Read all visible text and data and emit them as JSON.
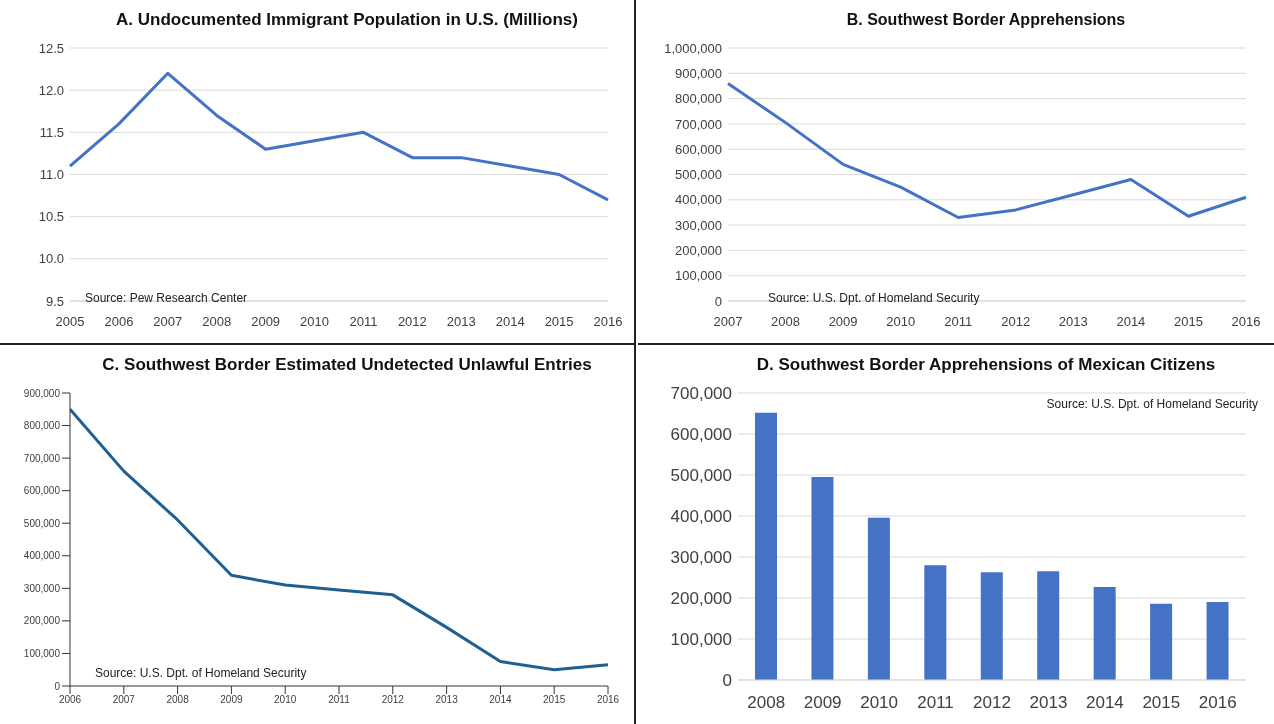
{
  "chart_data": [
    {
      "type": "line",
      "title": "A. Undocumented Immigrant Population in U.S. (Millions)",
      "categories": [
        "2005",
        "2006",
        "2007",
        "2008",
        "2009",
        "2010",
        "2011",
        "2012",
        "2013",
        "2014",
        "2015",
        "2016"
      ],
      "series": [
        {
          "color": "#4472c4",
          "values": [
            11.1,
            11.6,
            12.2,
            11.7,
            11.3,
            11.4,
            11.5,
            11.2,
            11.2,
            11.1,
            11.0,
            10.7
          ]
        }
      ],
      "ylim": [
        9.5,
        12.5
      ],
      "yticks": [
        9.5,
        {
          "value": 10,
          "label": "10.0"
        },
        10.5,
        {
          "value": 11,
          "label": "11.0"
        },
        11.5,
        {
          "value": 12,
          "label": "12.0"
        },
        12.5
      ],
      "grid": "y",
      "legend": false,
      "marker": "none",
      "annotations": [
        "Source:  Pew Research Center"
      ]
    },
    {
      "type": "line",
      "title": "B. Southwest Border Apprehensions",
      "categories": [
        "2007",
        "2008",
        "2009",
        "2010",
        "2011",
        "2012",
        "2013",
        "2014",
        "2015",
        "2016"
      ],
      "series": [
        {
          "color": "#4472c4",
          "values": [
            860000,
            705000,
            540000,
            450000,
            330000,
            360000,
            420000,
            480000,
            335000,
            410000
          ]
        }
      ],
      "ylim": [
        0,
        1000000
      ],
      "yticks": [
        0,
        {
          "value": 100000,
          "label": "100,000"
        },
        {
          "value": 200000,
          "label": "200,000"
        },
        {
          "value": 300000,
          "label": "300,000"
        },
        {
          "value": 400000,
          "label": "400,000"
        },
        {
          "value": 500000,
          "label": "500,000"
        },
        {
          "value": 600000,
          "label": "600,000"
        },
        {
          "value": 700000,
          "label": "700,000"
        },
        {
          "value": 800000,
          "label": "800,000"
        },
        {
          "value": 900000,
          "label": "900,000"
        },
        {
          "value": 1000000,
          "label": "1,000,000"
        }
      ],
      "grid": "y",
      "legend": false,
      "marker": "none",
      "annotations": [
        "Source:  U.S. Dpt. of Homeland Security"
      ]
    },
    {
      "type": "line",
      "title": "C. Southwest Border Estimated Undetected Unlawful Entries",
      "x": [
        2006,
        2007,
        2008,
        2009,
        2010,
        2011,
        2012,
        2013,
        2014,
        2015,
        2016
      ],
      "series": [
        {
          "color": "#1f5f92",
          "values": [
            850000,
            660000,
            510000,
            340000,
            310000,
            295000,
            280000,
            180000,
            75000,
            50000,
            65000
          ]
        }
      ],
      "xlim": [
        2006,
        2016
      ],
      "xticks": [
        2006,
        2007,
        2008,
        2009,
        2010,
        2011,
        2012,
        2013,
        2014,
        2015,
        2016
      ],
      "ylim": [
        0,
        900000
      ],
      "yticks": [
        0,
        {
          "value": 100000,
          "label": "100,000"
        },
        {
          "value": 200000,
          "label": "200,000"
        },
        {
          "value": 300000,
          "label": "300,000"
        },
        {
          "value": 400000,
          "label": "400,000"
        },
        {
          "value": 500000,
          "label": "500,000"
        },
        {
          "value": 600000,
          "label": "600,000"
        },
        {
          "value": 700000,
          "label": "700,000"
        },
        {
          "value": 800000,
          "label": "800,000"
        },
        {
          "value": 900000,
          "label": "900,000"
        }
      ],
      "grid": false,
      "legend": false,
      "marker": "none",
      "annotations": [
        "Source:  U.S. Dpt. of Homeland Security"
      ]
    },
    {
      "type": "bar",
      "title": "D. Southwest Border Apprehensions of Mexican Citizens",
      "categories": [
        "2008",
        "2009",
        "2010",
        "2011",
        "2012",
        "2013",
        "2014",
        "2015",
        "2016"
      ],
      "series": [
        {
          "color": "#4472c4",
          "values": [
            652000,
            495000,
            396000,
            280000,
            263000,
            265000,
            227000,
            186000,
            190000
          ]
        }
      ],
      "ylim": [
        0,
        700000
      ],
      "yticks": [
        0,
        {
          "value": 100000,
          "label": "100,000"
        },
        {
          "value": 200000,
          "label": "200,000"
        },
        {
          "value": 300000,
          "label": "300,000"
        },
        {
          "value": 400000,
          "label": "400,000"
        },
        {
          "value": 500000,
          "label": "500,000"
        },
        {
          "value": 600000,
          "label": "600,000"
        },
        {
          "value": 700000,
          "label": "700,000"
        }
      ],
      "grid": "y",
      "legend": false,
      "annotations": [
        "Source:  U.S. Dpt. of Homeland Security"
      ]
    }
  ]
}
